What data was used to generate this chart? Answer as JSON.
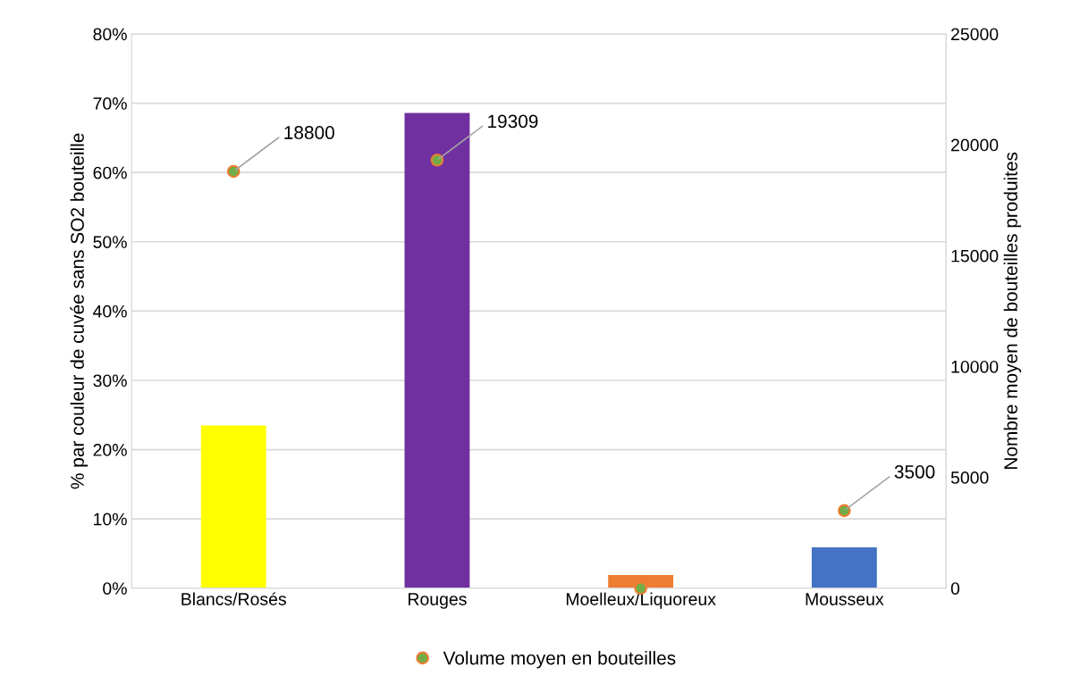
{
  "chart_data": {
    "type": "bar",
    "categories": [
      "Blancs/Rosés",
      "Rouges",
      "Moelleux/Liquoreux",
      "Mousseux"
    ],
    "series": [
      {
        "colors": [
          "#ffff00",
          "#7030a0",
          "#ed7d31",
          "#4472c4"
        ],
        "values": [
          23.5,
          68.6,
          1.9,
          5.9
        ]
      },
      {
        "type": "scatter",
        "name": "Volume moyen en bouteilles",
        "axis": "y2",
        "color": "#70ad47",
        "values": [
          18800,
          19309,
          0,
          3500
        ],
        "value_labels": [
          "18800",
          "19309",
          null,
          "3500"
        ]
      }
    ],
    "ylabel": "% par couleur de cuvée sans SO2 bouteille",
    "y2label": "Nombre moyen de bouteilles produites",
    "ylim": [
      0,
      80
    ],
    "yticks": [
      {
        "value": 0,
        "label": "0%"
      },
      {
        "value": 10,
        "label": "10%"
      },
      {
        "value": 20,
        "label": "20%"
      },
      {
        "value": 30,
        "label": "30%"
      },
      {
        "value": 40,
        "label": "40%"
      },
      {
        "value": 50,
        "label": "50%"
      },
      {
        "value": 60,
        "label": "60%"
      },
      {
        "value": 70,
        "label": "70%"
      },
      {
        "value": 80,
        "label": "80%"
      }
    ],
    "y2lim": [
      0,
      25000
    ],
    "y2ticks": [
      0,
      5000,
      10000,
      15000,
      20000,
      25000
    ],
    "grid": "y",
    "legend": "bottom",
    "marker": "circle"
  }
}
